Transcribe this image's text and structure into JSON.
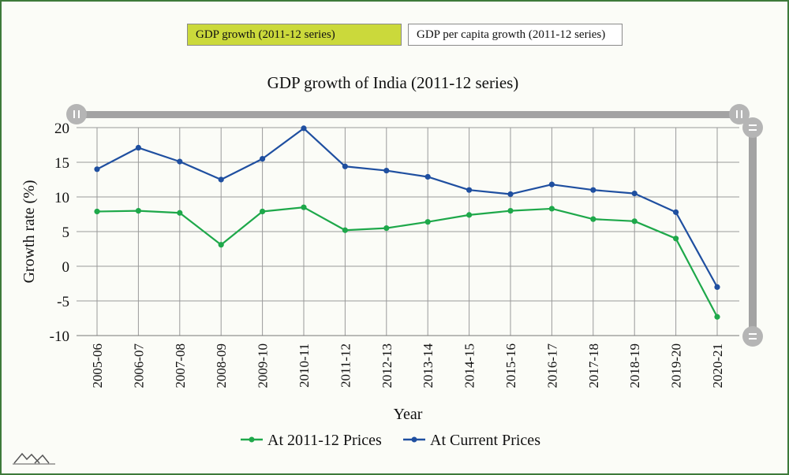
{
  "toggles": {
    "gdp_growth": "GDP growth (2011-12 series)",
    "gdp_per_capita": "GDP per capita growth (2011-12 series)"
  },
  "colors": {
    "constant_series": "#1ea84a",
    "current_series": "#1f4fa0",
    "active_toggle": "#cbd93b",
    "grid": "#9a9a9a",
    "scrollbar": "#a3a3a3"
  },
  "chart_data": {
    "type": "line",
    "title": "GDP growth of India (2011-12 series)",
    "xlabel": "Year",
    "ylabel": "Growth rate (%)",
    "ylim": [
      -10,
      20
    ],
    "yticks": [
      20,
      15,
      10,
      5,
      0,
      -5,
      -10
    ],
    "ytick_labels": [
      "20",
      "15",
      "10",
      "5",
      "0",
      "-5",
      "-10"
    ],
    "categories": [
      "2005-06",
      "2006-07",
      "2007-08",
      "2008-09",
      "2009-10",
      "2010-11",
      "2011-12",
      "2012-13",
      "2013-14",
      "2014-15",
      "2015-16",
      "2016-17",
      "2017-18",
      "2018-19",
      "2019-20",
      "2020-21"
    ],
    "series": [
      {
        "name": "At 2011-12 Prices",
        "values": [
          7.9,
          8.0,
          7.7,
          3.1,
          7.9,
          8.5,
          5.2,
          5.5,
          6.4,
          7.4,
          8.0,
          8.3,
          6.8,
          6.5,
          4.0,
          -7.3
        ]
      },
      {
        "name": "At Current Prices",
        "values": [
          14.0,
          17.1,
          15.1,
          12.5,
          15.5,
          19.9,
          14.4,
          13.8,
          12.9,
          11.0,
          10.4,
          11.8,
          11.0,
          10.5,
          7.8,
          -3.0
        ]
      }
    ],
    "legend_position": "bottom-center",
    "grid": true
  }
}
